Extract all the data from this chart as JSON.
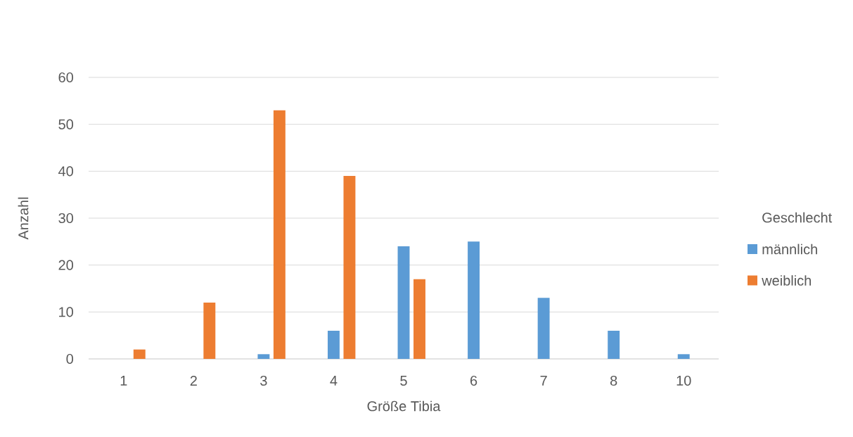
{
  "chart_data": {
    "type": "bar",
    "xlabel": "Größe Tibia",
    "ylabel": "Anzahl",
    "legend_title": "Geschlecht",
    "categories": [
      "1",
      "2",
      "3",
      "4",
      "5",
      "6",
      "7",
      "8",
      "10"
    ],
    "series": [
      {
        "name": "männlich",
        "color": "#5b9bd5",
        "values": [
          null,
          null,
          1,
          6,
          24,
          25,
          13,
          6,
          1
        ]
      },
      {
        "name": "weiblich",
        "color": "#ed7d31",
        "values": [
          2,
          12,
          53,
          39,
          17,
          null,
          null,
          null,
          null
        ]
      }
    ],
    "ylim": [
      0,
      60
    ],
    "yticks": [
      0,
      10,
      20,
      30,
      40,
      50,
      60
    ],
    "grid": "y",
    "legend": "right"
  }
}
